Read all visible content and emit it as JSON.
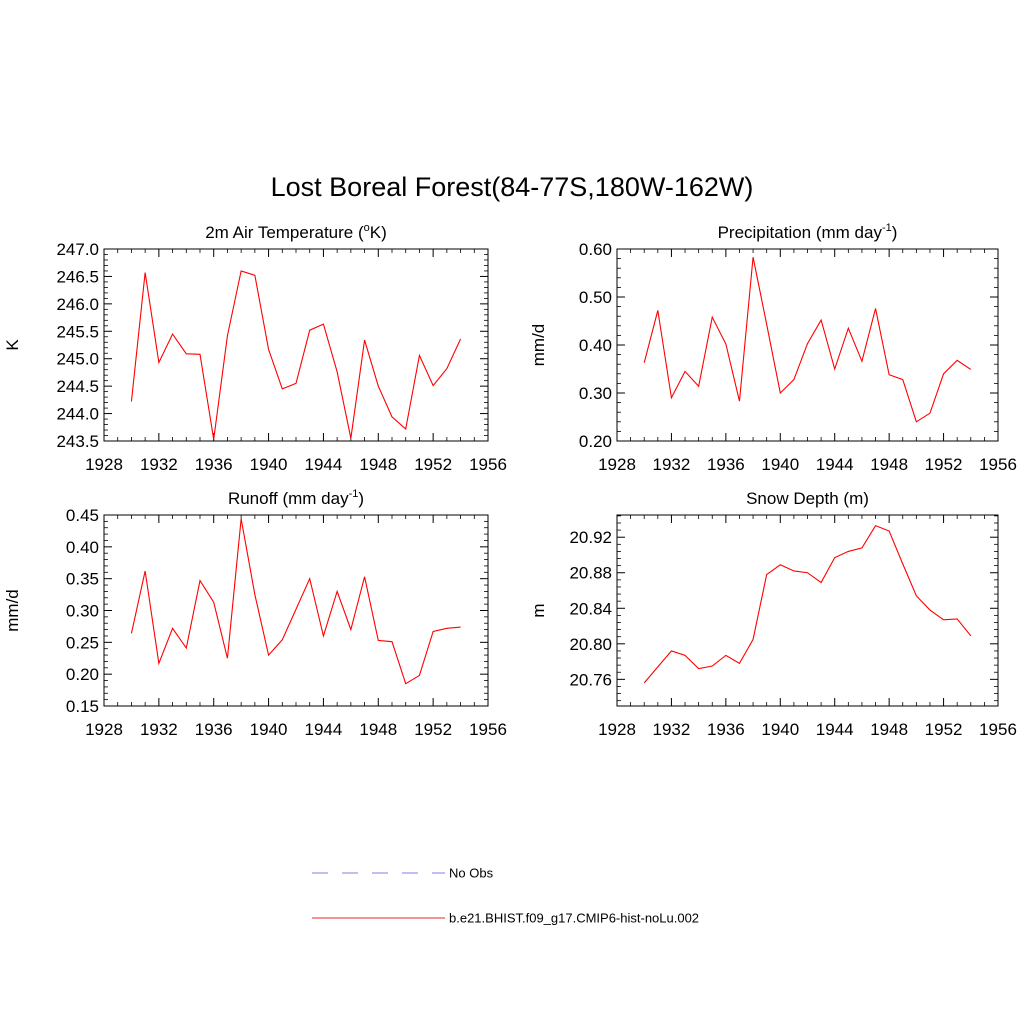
{
  "figure": {
    "title": "Lost Boreal Forest(84-77S,180W-162W)"
  },
  "legend": {
    "entries": [
      {
        "label": "No Obs",
        "color": "#9999ee",
        "dashed": true
      },
      {
        "label": "b.e21.BHIST.f09_g17.CMIP6-hist-noLu.002",
        "color": "#ee5555",
        "dashed": false
      }
    ]
  },
  "chart_data": [
    {
      "type": "line",
      "title": "2m Air Temperature (",
      "title_sup": "o",
      "title_tail": "K)",
      "ylabel": "K",
      "xlim": [
        1928,
        1956
      ],
      "ylim": [
        243.5,
        247.0
      ],
      "xticks": [
        1928,
        1932,
        1936,
        1940,
        1944,
        1948,
        1952,
        1956
      ],
      "yticks": [
        243.5,
        244.0,
        244.5,
        245.0,
        245.5,
        246.0,
        246.5,
        247.0
      ],
      "ytick_decimals": 1,
      "series": [
        {
          "color": "#ff0000",
          "x": [
            1930,
            1931,
            1932,
            1933,
            1934,
            1935,
            1936,
            1937,
            1938,
            1939,
            1940,
            1941,
            1942,
            1943,
            1944,
            1945,
            1946,
            1947,
            1948,
            1949,
            1950,
            1951,
            1952,
            1953,
            1954
          ],
          "y": [
            244.22,
            246.57,
            244.93,
            245.45,
            245.09,
            245.08,
            243.53,
            245.42,
            246.6,
            246.52,
            245.17,
            244.45,
            244.55,
            245.52,
            245.63,
            244.76,
            243.55,
            245.34,
            244.5,
            243.94,
            243.72,
            245.06,
            244.51,
            244.82,
            245.36
          ]
        }
      ]
    },
    {
      "type": "line",
      "title": "Precipitation (mm day",
      "title_sup": "-1",
      "title_tail": ")",
      "ylabel": "mm/d",
      "xlim": [
        1928,
        1956
      ],
      "ylim": [
        0.2,
        0.6
      ],
      "xticks": [
        1928,
        1932,
        1936,
        1940,
        1944,
        1948,
        1952,
        1956
      ],
      "yticks": [
        0.2,
        0.3,
        0.4,
        0.5,
        0.6
      ],
      "ytick_decimals": 2,
      "series": [
        {
          "color": "#ff0000",
          "x": [
            1930,
            1931,
            1932,
            1933,
            1934,
            1935,
            1936,
            1937,
            1938,
            1939,
            1940,
            1941,
            1942,
            1943,
            1944,
            1945,
            1946,
            1947,
            1948,
            1949,
            1950,
            1951,
            1952,
            1953,
            1954
          ],
          "y": [
            0.363,
            0.472,
            0.29,
            0.345,
            0.314,
            0.458,
            0.402,
            0.283,
            0.583,
            0.443,
            0.3,
            0.328,
            0.403,
            0.452,
            0.35,
            0.435,
            0.366,
            0.476,
            0.338,
            0.328,
            0.24,
            0.258,
            0.34,
            0.368,
            0.349
          ]
        }
      ]
    },
    {
      "type": "line",
      "title": "Runoff (mm day",
      "title_sup": "-1",
      "title_tail": ")",
      "ylabel": "mm/d",
      "xlim": [
        1928,
        1956
      ],
      "ylim": [
        0.15,
        0.45
      ],
      "xticks": [
        1928,
        1932,
        1936,
        1940,
        1944,
        1948,
        1952,
        1956
      ],
      "yticks": [
        0.15,
        0.2,
        0.25,
        0.3,
        0.35,
        0.4,
        0.45
      ],
      "ytick_decimals": 2,
      "series": [
        {
          "color": "#ff0000",
          "x": [
            1930,
            1931,
            1932,
            1933,
            1934,
            1935,
            1936,
            1937,
            1938,
            1939,
            1940,
            1941,
            1942,
            1943,
            1944,
            1945,
            1946,
            1947,
            1948,
            1949,
            1950,
            1951,
            1952,
            1953,
            1954
          ],
          "y": [
            0.264,
            0.362,
            0.217,
            0.272,
            0.241,
            0.347,
            0.313,
            0.225,
            0.444,
            0.325,
            0.23,
            0.254,
            0.302,
            0.35,
            0.26,
            0.33,
            0.27,
            0.353,
            0.253,
            0.251,
            0.185,
            0.198,
            0.267,
            0.272,
            0.274
          ]
        }
      ]
    },
    {
      "type": "line",
      "title": "Snow Depth (m)",
      "title_sup": "",
      "title_tail": "",
      "ylabel": "m",
      "xlim": [
        1928,
        1956
      ],
      "ylim": [
        20.73,
        20.945
      ],
      "xticks": [
        1928,
        1932,
        1936,
        1940,
        1944,
        1948,
        1952,
        1956
      ],
      "yticks": [
        20.76,
        20.8,
        20.84,
        20.88,
        20.92
      ],
      "ytick_decimals": 2,
      "series": [
        {
          "color": "#ff0000",
          "x": [
            1930,
            1931,
            1932,
            1933,
            1934,
            1935,
            1936,
            1937,
            1938,
            1939,
            1940,
            1941,
            1942,
            1943,
            1944,
            1945,
            1946,
            1947,
            1948,
            1949,
            1950,
            1951,
            1952,
            1953,
            1954
          ],
          "y": [
            20.756,
            20.774,
            20.792,
            20.787,
            20.772,
            20.775,
            20.787,
            20.778,
            20.805,
            20.878,
            20.889,
            20.882,
            20.88,
            20.869,
            20.897,
            20.904,
            20.908,
            20.933,
            20.927,
            20.89,
            20.854,
            20.838,
            20.827,
            20.828,
            20.809
          ]
        }
      ]
    }
  ]
}
